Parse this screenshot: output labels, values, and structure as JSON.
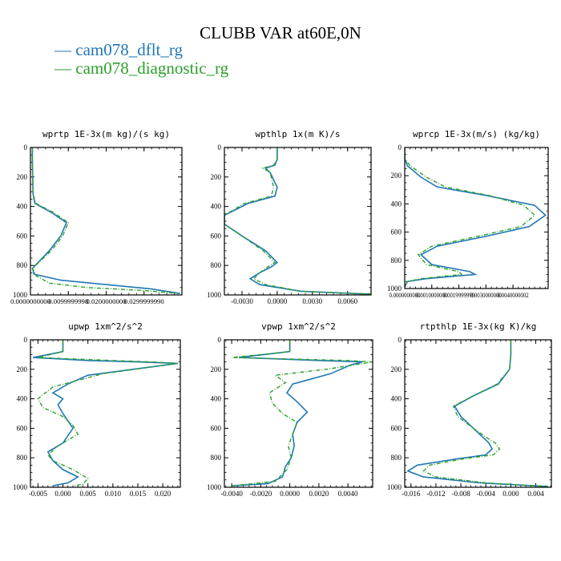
{
  "figure": {
    "title": "CLUBB VAR at60E,0N",
    "legend": [
      {
        "label": "— cam078_dflt_rg",
        "color": "#1f77b4"
      },
      {
        "label": "— cam078_diagnostic_rg",
        "color": "#2ca02c"
      }
    ]
  },
  "chart_data": [
    {
      "type": "line",
      "title": "wprtp  1E-3x(m kg)/(s kg)",
      "ylim": [
        1000,
        0
      ],
      "yticks": [
        "0",
        "200",
        "400",
        "600",
        "800",
        "1000"
      ],
      "xlim": [
        0,
        0.04
      ],
      "xtick_values": [
        0,
        0.01,
        0.02,
        0.03
      ],
      "xtick_labels": [
        "0.0000000000",
        "0.0099999998",
        "0.0200000000",
        "0.0299999990"
      ],
      "series": [
        {
          "name": "cam078_dflt_rg",
          "style": "solid",
          "color": "#1f77b4",
          "x": [
            0.0005,
            0.0005,
            0.0006,
            0.0007,
            0.0012,
            0.0055,
            0.0095,
            0.008,
            0.005,
            0.002,
            0.0005,
            0.001,
            0.008,
            0.02,
            0.032,
            0.0395
          ],
          "y": [
            0,
            100,
            200,
            320,
            380,
            440,
            510,
            600,
            700,
            780,
            820,
            860,
            900,
            930,
            960,
            990
          ]
        },
        {
          "name": "cam078_diagnostic_rg",
          "style": "dashed",
          "color": "#2ca02c",
          "x": [
            0.0005,
            0.0005,
            0.0006,
            0.0007,
            0.0015,
            0.006,
            0.01,
            0.0085,
            0.0055,
            0.0022,
            0.0005,
            0.0015,
            0.005,
            0.015,
            0.03,
            0.039
          ],
          "y": [
            0,
            100,
            200,
            320,
            380,
            440,
            510,
            600,
            700,
            780,
            820,
            870,
            920,
            950,
            970,
            990
          ]
        }
      ]
    },
    {
      "type": "line",
      "title": "wpthlp  1x(m K)/s",
      "ylim": [
        1000,
        0
      ],
      "yticks": [
        "0",
        "200",
        "400",
        "600",
        "800",
        "1000"
      ],
      "xlim": [
        -0.0045,
        0.008
      ],
      "xtick_values": [
        -0.003,
        0,
        0.003,
        0.006
      ],
      "xtick_labels": [
        "-0.0030",
        "0.0000",
        "0.0030",
        "0.0060"
      ],
      "series": [
        {
          "name": "cam078_dflt_rg",
          "style": "solid",
          "color": "#1f77b4",
          "x": [
            0.0,
            0.0,
            -0.0002,
            -0.001,
            -0.0006,
            0.0,
            -0.0002,
            -0.0025,
            -0.0045,
            -0.0045,
            -0.003,
            -0.001,
            0.0,
            -0.0005,
            -0.0015,
            -0.0023,
            -0.0015,
            0.002,
            0.008
          ],
          "y": [
            0,
            80,
            120,
            140,
            170,
            270,
            330,
            380,
            460,
            520,
            600,
            700,
            780,
            810,
            850,
            890,
            930,
            975,
            995
          ]
        },
        {
          "name": "cam078_diagnostic_rg",
          "style": "dashed",
          "color": "#2ca02c",
          "x": [
            0.0,
            0.0,
            -0.0003,
            -0.0012,
            -0.0006,
            -0.0003,
            -0.0005,
            -0.0028,
            -0.0045,
            -0.0045,
            -0.003,
            -0.0012,
            -0.0002,
            -0.0008,
            -0.0015,
            -0.002,
            -0.001,
            0.002,
            0.008
          ],
          "y": [
            0,
            80,
            120,
            140,
            170,
            270,
            330,
            380,
            460,
            520,
            600,
            700,
            780,
            810,
            850,
            890,
            930,
            975,
            995
          ]
        }
      ]
    },
    {
      "type": "line",
      "title": "wprcp  1E-3x(m/s) (kg/kg)",
      "ylim": [
        1000,
        0
      ],
      "yticks": [
        "0",
        "200",
        "400",
        "600",
        "800",
        "1000"
      ],
      "xlim": [
        0,
        0.0053
      ],
      "xtick_values": [
        0,
        0.001,
        0.002,
        0.003,
        0.004
      ],
      "xtick_labels": [
        "0.0000000000",
        "0.0010000000",
        "0.0019999999",
        "0.0030000000",
        "0.0040000002"
      ],
      "series": [
        {
          "name": "cam078_dflt_rg",
          "style": "solid",
          "color": "#1f77b4",
          "x": [
            0.0,
            0.0,
            0.0001,
            0.0006,
            0.0012,
            0.003,
            0.0048,
            0.0052,
            0.0046,
            0.003,
            0.0012,
            0.0006,
            0.001,
            0.0024,
            0.0026,
            0.0008,
            0.0001,
            0.0
          ],
          "y": [
            0,
            80,
            130,
            210,
            280,
            340,
            410,
            480,
            560,
            630,
            700,
            760,
            830,
            880,
            900,
            930,
            950,
            990
          ]
        },
        {
          "name": "cam078_diagnostic_rg",
          "style": "dashed",
          "color": "#2ca02c",
          "x": [
            0.0,
            0.0,
            0.0002,
            0.0008,
            0.0015,
            0.0031,
            0.0044,
            0.0048,
            0.0043,
            0.0027,
            0.001,
            0.0005,
            0.0008,
            0.002,
            0.0021,
            0.0006,
            0.0001,
            0.0
          ],
          "y": [
            0,
            80,
            130,
            210,
            280,
            340,
            410,
            480,
            560,
            630,
            700,
            760,
            830,
            880,
            900,
            930,
            950,
            990
          ]
        }
      ]
    },
    {
      "type": "line",
      "title": "upwp  1xm^2/s^2",
      "ylim": [
        1000,
        0
      ],
      "yticks": [
        "0",
        "200",
        "400",
        "600",
        "800",
        "1000"
      ],
      "xlim": [
        -0.0065,
        0.0235
      ],
      "xtick_values": [
        -0.005,
        0,
        0.005,
        0.01,
        0.015,
        0.02
      ],
      "xtick_labels": [
        "-0.005",
        "0.000",
        "0.005",
        "0.010",
        "0.015",
        "0.020"
      ],
      "series": [
        {
          "name": "cam078_dflt_rg",
          "style": "solid",
          "color": "#1f77b4",
          "x": [
            0.0,
            0.0,
            -0.006,
            0.005,
            0.015,
            0.023,
            0.005,
            0.001,
            -0.002,
            0.0,
            -0.001,
            0.0,
            0.002,
            0.0,
            -0.003,
            -0.002,
            0.0,
            0.003,
            0.001,
            -0.002
          ],
          "y": [
            0,
            80,
            120,
            140,
            150,
            160,
            240,
            300,
            360,
            400,
            440,
            500,
            600,
            700,
            760,
            820,
            880,
            930,
            970,
            990
          ]
        },
        {
          "name": "cam078_diagnostic_rg",
          "style": "dashed",
          "color": "#2ca02c",
          "x": [
            0.0,
            0.0,
            -0.005,
            0.01,
            0.018,
            0.023,
            0.008,
            -0.002,
            -0.005,
            -0.004,
            0.0,
            0.002,
            0.003,
            -0.001,
            -0.003,
            -0.002,
            0.002,
            0.005,
            0.004,
            0.002
          ],
          "y": [
            0,
            80,
            120,
            140,
            150,
            160,
            230,
            320,
            400,
            460,
            520,
            580,
            640,
            720,
            780,
            820,
            880,
            940,
            980,
            990
          ]
        }
      ]
    },
    {
      "type": "line",
      "title": "vpwp  1xm^2/s^2",
      "ylim": [
        1000,
        0
      ],
      "yticks": [
        "0",
        "200",
        "400",
        "600",
        "800",
        "1000"
      ],
      "xlim": [
        -0.0045,
        0.0057
      ],
      "xtick_values": [
        -0.004,
        -0.002,
        0,
        0.002,
        0.004
      ],
      "xtick_labels": [
        "-0.0040",
        "-0.0020",
        "0.0000",
        "0.0020",
        "0.0040"
      ],
      "series": [
        {
          "name": "cam078_dflt_rg",
          "style": "solid",
          "color": "#1f77b4",
          "x": [
            0.0,
            0.0,
            -0.0035,
            0.002,
            0.005,
            0.0042,
            0.0028,
            0.0002,
            -0.0002,
            0.0005,
            0.0012,
            0.0005,
            0.0002,
            0.0003,
            0.0001,
            -0.0003,
            -0.0005,
            -0.0015,
            -0.004
          ],
          "y": [
            0,
            80,
            120,
            140,
            150,
            170,
            230,
            300,
            360,
            420,
            490,
            560,
            640,
            720,
            800,
            860,
            930,
            975,
            990
          ]
        },
        {
          "name": "cam078_diagnostic_rg",
          "style": "dashed",
          "color": "#2ca02c",
          "x": [
            0.0,
            0.0,
            -0.004,
            0.004,
            0.0057,
            0.0025,
            -0.001,
            -0.0003,
            -0.0014,
            -0.0012,
            -0.0005,
            0.0005,
            0.0002,
            -0.0001,
            0.0001,
            -0.0002,
            -0.001,
            -0.004
          ],
          "y": [
            0,
            80,
            120,
            140,
            150,
            200,
            240,
            290,
            360,
            430,
            500,
            560,
            640,
            720,
            800,
            880,
            960,
            990
          ]
        }
      ]
    },
    {
      "type": "line",
      "title": "rtpthlp  1E-3x(kg K)/kg",
      "ylim": [
        1000,
        0
      ],
      "yticks": [
        "0",
        "200",
        "400",
        "600",
        "800",
        "1000"
      ],
      "xlim": [
        -0.017,
        0.0065
      ],
      "xtick_values": [
        -0.016,
        -0.012,
        -0.008,
        -0.004,
        0,
        0.004
      ],
      "xtick_labels": [
        "-0.016",
        "-0.012",
        "-0.008",
        "-0.004",
        "0.000",
        "0.004"
      ],
      "series": [
        {
          "name": "cam078_dflt_rg",
          "style": "solid",
          "color": "#1f77b4",
          "x": [
            0.0,
            0.0,
            -0.0002,
            -0.002,
            -0.006,
            -0.009,
            -0.008,
            -0.006,
            -0.0045,
            -0.0035,
            -0.003,
            -0.004,
            -0.009,
            -0.015,
            -0.0165,
            -0.014,
            -0.005,
            0.006
          ],
          "y": [
            0,
            100,
            200,
            300,
            380,
            450,
            520,
            600,
            660,
            700,
            740,
            780,
            810,
            850,
            890,
            930,
            970,
            995
          ]
        },
        {
          "name": "cam078_diagnostic_rg",
          "style": "dashed",
          "color": "#2ca02c",
          "x": [
            0.0,
            0.0,
            -0.0002,
            -0.0022,
            -0.006,
            -0.0092,
            -0.0085,
            -0.006,
            -0.004,
            -0.0025,
            -0.0018,
            -0.0028,
            -0.008,
            -0.013,
            -0.014,
            -0.012,
            -0.004,
            0.006
          ],
          "y": [
            0,
            100,
            200,
            300,
            380,
            450,
            520,
            600,
            660,
            700,
            740,
            780,
            810,
            850,
            890,
            930,
            970,
            995
          ]
        }
      ]
    }
  ]
}
